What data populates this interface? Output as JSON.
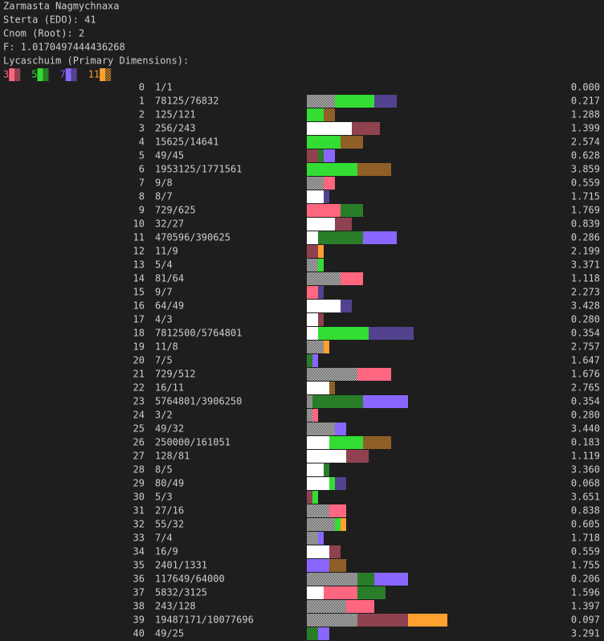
{
  "header": {
    "lines": [
      "Zarmasta Nagmychnaxa",
      "Sterta (EDO): 41",
      "Cnom (Root): 2",
      "F: 1.0170497444436268",
      "Lycaschuim (Primary Dimensions):"
    ]
  },
  "legend": [
    {
      "label": "3",
      "color": "#ff6680"
    },
    {
      "label": "5",
      "color": "#33dd33"
    },
    {
      "label": "7",
      "color": "#8866ff"
    },
    {
      "label": "11",
      "color": "#ffa030"
    }
  ],
  "rows": [
    {
      "index": "0",
      "ratio": "1/1",
      "value": "0.000",
      "segments": []
    },
    {
      "index": "1",
      "ratio": "78125/76832",
      "value": "0.217",
      "segments": [
        {
          "color": "#ffffff",
          "exponent": -5
        },
        {
          "color": "#33dd33",
          "exponent": 7
        },
        {
          "color": "#8866ff",
          "exponent": -4
        }
      ]
    },
    {
      "index": "2",
      "ratio": "125/121",
      "value": "1.288",
      "segments": [
        {
          "color": "#33dd33",
          "exponent": 3
        },
        {
          "color": "#ffa030",
          "exponent": -2
        }
      ]
    },
    {
      "index": "3",
      "ratio": "256/243",
      "value": "1.399",
      "segments": [
        {
          "color": "#ffffff",
          "exponent": 8
        },
        {
          "color": "#ff6680",
          "exponent": -5
        }
      ]
    },
    {
      "index": "4",
      "ratio": "15625/14641",
      "value": "2.574",
      "segments": [
        {
          "color": "#33dd33",
          "exponent": 6
        },
        {
          "color": "#ffa030",
          "exponent": -4
        }
      ]
    },
    {
      "index": "5",
      "ratio": "49/45",
      "value": "0.628",
      "segments": [
        {
          "color": "#ff6680",
          "exponent": -2
        },
        {
          "color": "#33dd33",
          "exponent": -1
        },
        {
          "color": "#8866ff",
          "exponent": 2
        }
      ]
    },
    {
      "index": "6",
      "ratio": "1953125/1771561",
      "value": "3.859",
      "segments": [
        {
          "color": "#33dd33",
          "exponent": 9
        },
        {
          "color": "#ffa030",
          "exponent": -6
        }
      ]
    },
    {
      "index": "7",
      "ratio": "9/8",
      "value": "0.559",
      "segments": [
        {
          "color": "#ffffff",
          "exponent": -3
        },
        {
          "color": "#ff6680",
          "exponent": 2
        }
      ]
    },
    {
      "index": "8",
      "ratio": "8/7",
      "value": "1.715",
      "segments": [
        {
          "color": "#ffffff",
          "exponent": 3
        },
        {
          "color": "#8866ff",
          "exponent": -1
        }
      ]
    },
    {
      "index": "9",
      "ratio": "729/625",
      "value": "1.769",
      "segments": [
        {
          "color": "#ff6680",
          "exponent": 6
        },
        {
          "color": "#33dd33",
          "exponent": -4
        }
      ]
    },
    {
      "index": "10",
      "ratio": "32/27",
      "value": "0.839",
      "segments": [
        {
          "color": "#ffffff",
          "exponent": 5
        },
        {
          "color": "#ff6680",
          "exponent": -3
        }
      ]
    },
    {
      "index": "11",
      "ratio": "470596/390625",
      "value": "0.286",
      "segments": [
        {
          "color": "#ffffff",
          "exponent": 2
        },
        {
          "color": "#33dd33",
          "exponent": -8
        },
        {
          "color": "#8866ff",
          "exponent": 6
        }
      ]
    },
    {
      "index": "12",
      "ratio": "11/9",
      "value": "2.199",
      "segments": [
        {
          "color": "#ff6680",
          "exponent": -2
        },
        {
          "color": "#ffa030",
          "exponent": 1
        }
      ]
    },
    {
      "index": "13",
      "ratio": "5/4",
      "value": "3.371",
      "segments": [
        {
          "color": "#ffffff",
          "exponent": -2
        },
        {
          "color": "#33dd33",
          "exponent": 1
        }
      ]
    },
    {
      "index": "14",
      "ratio": "81/64",
      "value": "1.118",
      "segments": [
        {
          "color": "#ffffff",
          "exponent": -6
        },
        {
          "color": "#ff6680",
          "exponent": 4
        }
      ]
    },
    {
      "index": "15",
      "ratio": "9/7",
      "value": "2.273",
      "segments": [
        {
          "color": "#ff6680",
          "exponent": 2
        },
        {
          "color": "#8866ff",
          "exponent": -1
        }
      ]
    },
    {
      "index": "16",
      "ratio": "64/49",
      "value": "3.428",
      "segments": [
        {
          "color": "#ffffff",
          "exponent": 6
        },
        {
          "color": "#8866ff",
          "exponent": -2
        }
      ]
    },
    {
      "index": "17",
      "ratio": "4/3",
      "value": "0.280",
      "segments": [
        {
          "color": "#ffffff",
          "exponent": 2
        },
        {
          "color": "#ff6680",
          "exponent": -1
        }
      ]
    },
    {
      "index": "18",
      "ratio": "7812500/5764801",
      "value": "0.354",
      "segments": [
        {
          "color": "#ffffff",
          "exponent": 2
        },
        {
          "color": "#33dd33",
          "exponent": 9
        },
        {
          "color": "#8866ff",
          "exponent": -8
        }
      ]
    },
    {
      "index": "19",
      "ratio": "11/8",
      "value": "2.757",
      "segments": [
        {
          "color": "#ffffff",
          "exponent": -3
        },
        {
          "color": "#ffa030",
          "exponent": 1
        }
      ]
    },
    {
      "index": "20",
      "ratio": "7/5",
      "value": "1.647",
      "segments": [
        {
          "color": "#33dd33",
          "exponent": -1
        },
        {
          "color": "#8866ff",
          "exponent": 1
        }
      ]
    },
    {
      "index": "21",
      "ratio": "729/512",
      "value": "1.676",
      "segments": [
        {
          "color": "#ffffff",
          "exponent": -9
        },
        {
          "color": "#ff6680",
          "exponent": 6
        }
      ]
    },
    {
      "index": "22",
      "ratio": "16/11",
      "value": "2.765",
      "segments": [
        {
          "color": "#ffffff",
          "exponent": 4
        },
        {
          "color": "#ffa030",
          "exponent": -1
        }
      ]
    },
    {
      "index": "23",
      "ratio": "5764801/3906250",
      "value": "0.354",
      "segments": [
        {
          "color": "#ffffff",
          "exponent": -1
        },
        {
          "color": "#33dd33",
          "exponent": -9
        },
        {
          "color": "#8866ff",
          "exponent": 8
        }
      ]
    },
    {
      "index": "24",
      "ratio": "3/2",
      "value": "0.280",
      "segments": [
        {
          "color": "#ffffff",
          "exponent": -1
        },
        {
          "color": "#ff6680",
          "exponent": 1
        }
      ]
    },
    {
      "index": "25",
      "ratio": "49/32",
      "value": "3.440",
      "segments": [
        {
          "color": "#ffffff",
          "exponent": -5
        },
        {
          "color": "#8866ff",
          "exponent": 2
        }
      ]
    },
    {
      "index": "26",
      "ratio": "250000/161051",
      "value": "0.183",
      "segments": [
        {
          "color": "#ffffff",
          "exponent": 4
        },
        {
          "color": "#33dd33",
          "exponent": 6
        },
        {
          "color": "#ffa030",
          "exponent": -5
        }
      ]
    },
    {
      "index": "27",
      "ratio": "128/81",
      "value": "1.119",
      "segments": [
        {
          "color": "#ffffff",
          "exponent": 7
        },
        {
          "color": "#ff6680",
          "exponent": -4
        }
      ]
    },
    {
      "index": "28",
      "ratio": "8/5",
      "value": "3.360",
      "segments": [
        {
          "color": "#ffffff",
          "exponent": 3
        },
        {
          "color": "#33dd33",
          "exponent": -1
        }
      ]
    },
    {
      "index": "29",
      "ratio": "80/49",
      "value": "0.068",
      "segments": [
        {
          "color": "#ffffff",
          "exponent": 4
        },
        {
          "color": "#33dd33",
          "exponent": 1
        },
        {
          "color": "#8866ff",
          "exponent": -2
        }
      ]
    },
    {
      "index": "30",
      "ratio": "5/3",
      "value": "3.651",
      "segments": [
        {
          "color": "#ff6680",
          "exponent": -1
        },
        {
          "color": "#33dd33",
          "exponent": 1
        }
      ]
    },
    {
      "index": "31",
      "ratio": "27/16",
      "value": "0.838",
      "segments": [
        {
          "color": "#ffffff",
          "exponent": -4
        },
        {
          "color": "#ff6680",
          "exponent": 3
        }
      ]
    },
    {
      "index": "32",
      "ratio": "55/32",
      "value": "0.605",
      "segments": [
        {
          "color": "#ffffff",
          "exponent": -5
        },
        {
          "color": "#33dd33",
          "exponent": 1
        },
        {
          "color": "#ffa030",
          "exponent": 1
        }
      ]
    },
    {
      "index": "33",
      "ratio": "7/4",
      "value": "1.718",
      "segments": [
        {
          "color": "#ffffff",
          "exponent": -2
        },
        {
          "color": "#8866ff",
          "exponent": 1
        }
      ]
    },
    {
      "index": "34",
      "ratio": "16/9",
      "value": "0.559",
      "segments": [
        {
          "color": "#ffffff",
          "exponent": 4
        },
        {
          "color": "#ff6680",
          "exponent": -2
        }
      ]
    },
    {
      "index": "35",
      "ratio": "2401/1331",
      "value": "1.755",
      "segments": [
        {
          "color": "#8866ff",
          "exponent": 4
        },
        {
          "color": "#ffa030",
          "exponent": -3
        }
      ]
    },
    {
      "index": "36",
      "ratio": "117649/64000",
      "value": "0.206",
      "segments": [
        {
          "color": "#ffffff",
          "exponent": -9
        },
        {
          "color": "#33dd33",
          "exponent": -3
        },
        {
          "color": "#8866ff",
          "exponent": 6
        }
      ]
    },
    {
      "index": "37",
      "ratio": "5832/3125",
      "value": "1.596",
      "segments": [
        {
          "color": "#ffffff",
          "exponent": 3
        },
        {
          "color": "#ff6680",
          "exponent": 6
        },
        {
          "color": "#33dd33",
          "exponent": -5
        }
      ]
    },
    {
      "index": "38",
      "ratio": "243/128",
      "value": "1.397",
      "segments": [
        {
          "color": "#ffffff",
          "exponent": -7
        },
        {
          "color": "#ff6680",
          "exponent": 5
        }
      ]
    },
    {
      "index": "39",
      "ratio": "19487171/10077696",
      "value": "0.097",
      "segments": [
        {
          "color": "#ffffff",
          "exponent": -9
        },
        {
          "color": "#ff6680",
          "exponent": -9
        },
        {
          "color": "#ffa030",
          "exponent": 7
        }
      ]
    },
    {
      "index": "40",
      "ratio": "49/25",
      "value": "3.291",
      "segments": [
        {
          "color": "#33dd33",
          "exponent": -2
        },
        {
          "color": "#8866ff",
          "exponent": 2
        }
      ]
    }
  ]
}
